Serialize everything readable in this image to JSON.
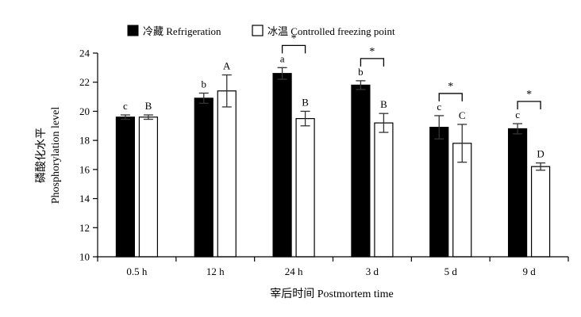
{
  "chart_data": {
    "type": "bar",
    "xlabel": "宰后时间 Postmortem time",
    "ylabel_cn": "磷酸化水平",
    "ylabel_en": "Phosphorylation level",
    "ylim": [
      10,
      24
    ],
    "yticks": [
      "10",
      "12",
      "14",
      "16",
      "18",
      "20",
      "22",
      "24"
    ],
    "categories": [
      "0.5 h",
      "12 h",
      "24 h",
      "3 d",
      "5 d",
      "9 d"
    ],
    "legend_position": "top-center",
    "series": [
      {
        "name": "冷藏 Refrigeration",
        "color": "#000000",
        "values": [
          19.6,
          20.9,
          22.6,
          21.8,
          18.9,
          18.8
        ],
        "errors": [
          0.15,
          0.35,
          0.4,
          0.3,
          0.8,
          0.35
        ],
        "letters": [
          "c",
          "b",
          "a",
          "b",
          "c",
          "c"
        ]
      },
      {
        "name": "冰温 Controlled freezing point",
        "color": "#ffffff",
        "values": [
          19.6,
          21.4,
          19.5,
          19.2,
          17.8,
          16.2
        ],
        "errors": [
          0.15,
          1.1,
          0.5,
          0.65,
          1.3,
          0.25
        ],
        "letters": [
          "B",
          "A",
          "B",
          "B",
          "C",
          "D"
        ]
      }
    ],
    "significance": [
      {
        "category": "24 h",
        "label": "*"
      },
      {
        "category": "3 d",
        "label": "*"
      },
      {
        "category": "5 d",
        "label": "*"
      },
      {
        "category": "9 d",
        "label": "*"
      }
    ]
  }
}
